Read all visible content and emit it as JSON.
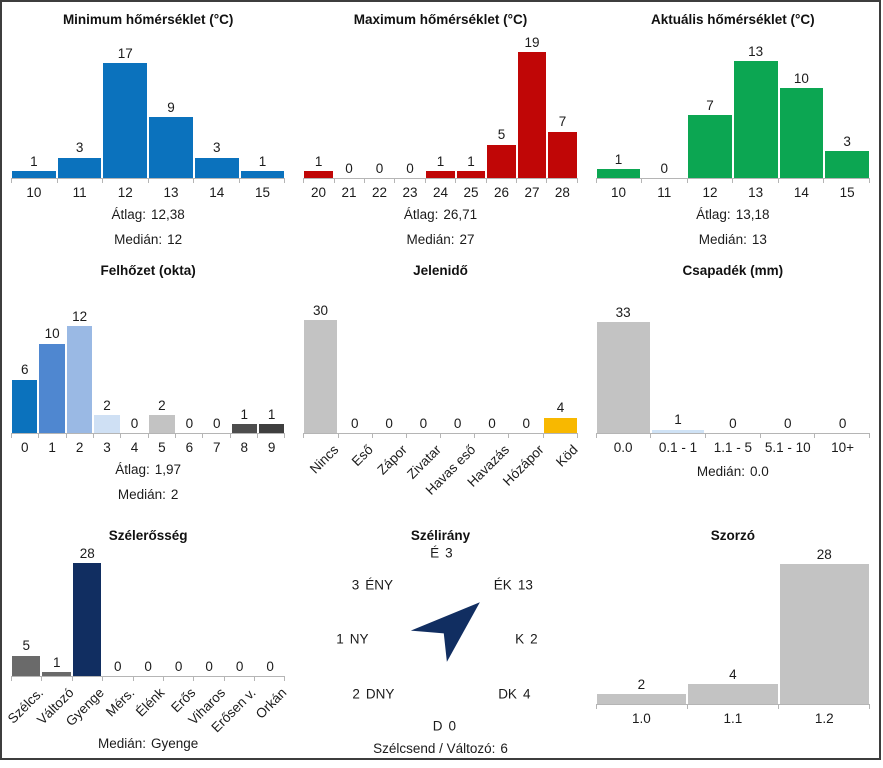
{
  "frame": {
    "background": "#ffffff",
    "border_color": "#3d3d3d"
  },
  "colors": {
    "axis": "#b5b5b5",
    "text": "#1b1b1b",
    "default_bar": "#c3c3c3"
  },
  "chart_data": [
    {
      "id": "minimum-homerseklet",
      "type": "bar",
      "title": "Minimum hőmérséklet (°C)",
      "categories": [
        "10",
        "11",
        "12",
        "13",
        "14",
        "15"
      ],
      "values": [
        1,
        3,
        17,
        9,
        3,
        1
      ],
      "bar_color": "#0b72bd",
      "x_label_rotation": 0,
      "stats": [
        {
          "label": "Átlag:",
          "value": "12,38"
        },
        {
          "label": "Medián:",
          "value": "12"
        }
      ]
    },
    {
      "id": "maximum-homerseklet",
      "type": "bar",
      "title": "Maximum hőmérséklet (°C)",
      "categories": [
        "20",
        "21",
        "22",
        "23",
        "24",
        "25",
        "26",
        "27",
        "28"
      ],
      "values": [
        1,
        0,
        0,
        0,
        1,
        1,
        5,
        19,
        7
      ],
      "bar_color": "#c00606",
      "x_label_rotation": 0,
      "stats": [
        {
          "label": "Átlag:",
          "value": "26,71"
        },
        {
          "label": "Medián:",
          "value": "27"
        }
      ]
    },
    {
      "id": "aktualis-homerseklet",
      "type": "bar",
      "title": "Aktuális hőmérséklet (°C)",
      "categories": [
        "10",
        "11",
        "12",
        "13",
        "14",
        "15"
      ],
      "values": [
        1,
        0,
        7,
        13,
        10,
        3
      ],
      "bar_color": "#0ca652",
      "x_label_rotation": 0,
      "stats": [
        {
          "label": "Átlag:",
          "value": "13,18"
        },
        {
          "label": "Medián:",
          "value": "13"
        }
      ]
    },
    {
      "id": "felhozet",
      "type": "bar",
      "title": "Felhőzet (okta)",
      "categories": [
        "0",
        "1",
        "2",
        "3",
        "4",
        "5",
        "6",
        "7",
        "8",
        "9"
      ],
      "values": [
        6,
        10,
        12,
        2,
        0,
        2,
        0,
        0,
        1,
        1
      ],
      "bar_colors": [
        "#0b72bd",
        "#4f87d0",
        "#9ab9e4",
        "#cfe0f4",
        "#c3c3c3",
        "#c3c3c3",
        "#c3c3c3",
        "#c3c3c3",
        "#4d4d4d",
        "#3e3e3e"
      ],
      "x_label_rotation": 0,
      "stats": [
        {
          "label": "Átlag:",
          "value": "1,97"
        },
        {
          "label": "Medián:",
          "value": "2"
        }
      ]
    },
    {
      "id": "jelenido",
      "type": "bar",
      "title": "Jelenidő",
      "categories": [
        "Nincs",
        "Eső",
        "Zápor",
        "Zivatar",
        "Havas eső",
        "Havazás",
        "Hózápor",
        "Köd"
      ],
      "values": [
        30,
        0,
        0,
        0,
        0,
        0,
        0,
        4
      ],
      "bar_colors": [
        "#c3c3c3",
        "#c3c3c3",
        "#c3c3c3",
        "#c3c3c3",
        "#c3c3c3",
        "#c3c3c3",
        "#c3c3c3",
        "#f8b800"
      ],
      "x_label_rotation": 45,
      "stats": []
    },
    {
      "id": "csapadek",
      "type": "bar",
      "title": "Csapadék (mm)",
      "categories": [
        "0.0",
        "0.1 - 1",
        "1.1 - 5",
        "5.1 - 10",
        "10+"
      ],
      "values": [
        33,
        1,
        0,
        0,
        0
      ],
      "bar_colors": [
        "#c3c3c3",
        "#cfe2f5",
        "#c3c3c3",
        "#c3c3c3",
        "#c3c3c3"
      ],
      "x_label_rotation": 0,
      "stats": [
        {
          "label": "Medián:",
          "value": "0.0"
        }
      ]
    },
    {
      "id": "szelerosseg",
      "type": "bar",
      "title": "Szélerősség",
      "categories": [
        "Szélcs.",
        "Változó",
        "Gyenge",
        "Mérs.",
        "Élénk",
        "Erős",
        "Viharos",
        "Erősen v.",
        "Orkán"
      ],
      "values": [
        5,
        1,
        28,
        0,
        0,
        0,
        0,
        0,
        0
      ],
      "bar_colors": [
        "#6a6a6a",
        "#6a6a6a",
        "#112e61",
        "#c3c3c3",
        "#c3c3c3",
        "#c3c3c3",
        "#c3c3c3",
        "#c3c3c3",
        "#c3c3c3"
      ],
      "x_label_rotation": 45,
      "stats": [
        {
          "label": "Medián:",
          "value": "Gyenge"
        }
      ]
    },
    {
      "id": "szelirany",
      "type": "compass",
      "title": "Szélirány",
      "directions": [
        {
          "dir": "É",
          "count": 3,
          "position": "n",
          "order": "dir-first"
        },
        {
          "dir": "ÉK",
          "count": 13,
          "position": "ne",
          "order": "dir-first"
        },
        {
          "dir": "K",
          "count": 2,
          "position": "e",
          "order": "dir-first"
        },
        {
          "dir": "DK",
          "count": 4,
          "position": "se",
          "order": "dir-first"
        },
        {
          "dir": "D",
          "count": 0,
          "position": "s",
          "order": "dir-first"
        },
        {
          "dir": "DNY",
          "count": 2,
          "position": "sw",
          "order": "count-first"
        },
        {
          "dir": "NY",
          "count": 1,
          "position": "w",
          "order": "count-first"
        },
        {
          "dir": "ÉNY",
          "count": 3,
          "position": "nw",
          "order": "count-first"
        }
      ],
      "arrow": {
        "points_to": "ÉK",
        "color": "#112e61"
      },
      "footer": {
        "label": "Szélcsend / Változó:",
        "value": "6"
      }
    },
    {
      "id": "szorzo",
      "type": "bar",
      "title": "Szorzó",
      "categories": [
        "1.0",
        "1.1",
        "1.2"
      ],
      "values": [
        2,
        4,
        28
      ],
      "bar_color": "#c3c3c3",
      "x_label_rotation": 0,
      "stats": []
    }
  ]
}
